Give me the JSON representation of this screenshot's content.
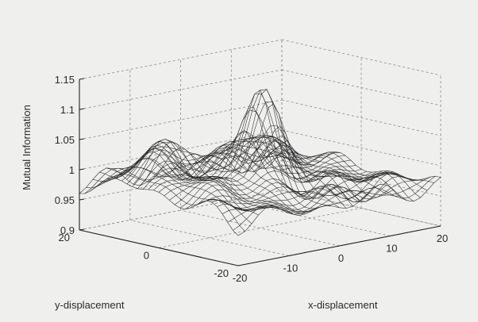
{
  "chart_data": {
    "type": "surface",
    "title": "",
    "xlabel": "x-displacement",
    "ylabel": "y-displacement",
    "zlabel": "Mutual Information",
    "xlim": [
      -20,
      20
    ],
    "ylim": [
      -20,
      20
    ],
    "zlim": [
      0.9,
      1.15
    ],
    "x_ticks": [
      "-20",
      "-10",
      "0",
      "10",
      "20"
    ],
    "y_ticks": [
      "-20",
      "0",
      "20"
    ],
    "z_ticks": [
      "0.9",
      "0.95",
      "1",
      "1.05",
      "1.1",
      "1.15"
    ],
    "grid": true,
    "peak": {
      "x": 0,
      "y": 0,
      "z": 1.13
    },
    "baseline_z": 0.97,
    "surface_features": [
      {
        "x": 0,
        "y": 0,
        "z": 1.13,
        "description": "central peak"
      },
      {
        "x": -12,
        "y": 10,
        "z": 1.05,
        "description": "ridge along far-left side"
      },
      {
        "x": 8,
        "y": 12,
        "z": 1.03,
        "description": "secondary bump toward far side"
      },
      {
        "x": 15,
        "y": -5,
        "z": 0.97,
        "description": "shallow ripples at right"
      }
    ]
  }
}
